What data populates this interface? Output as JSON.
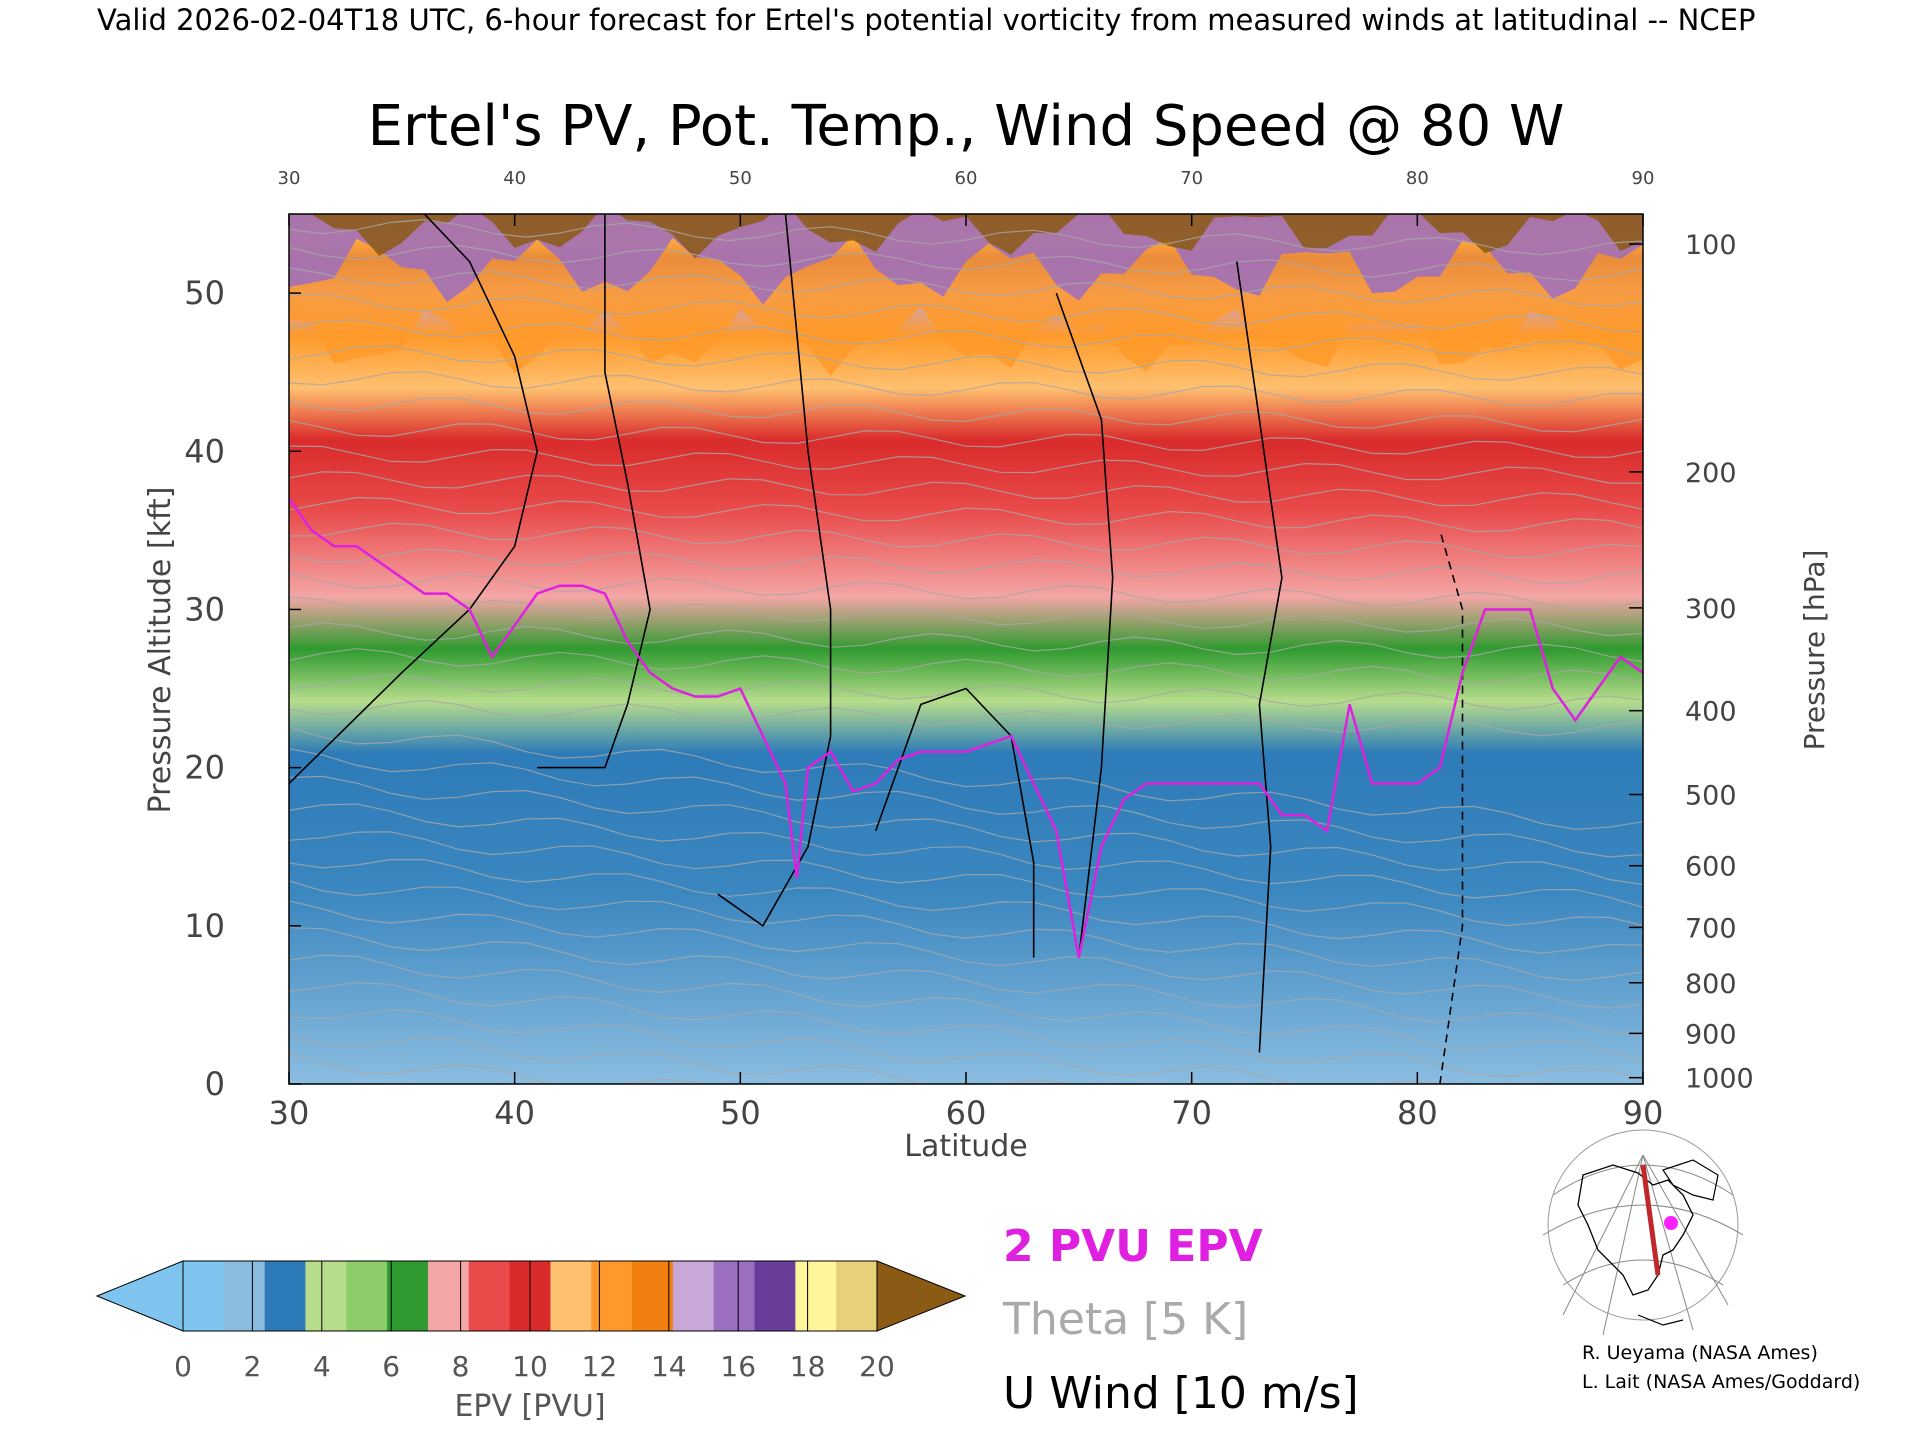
{
  "header": {
    "valid_line": "Valid 2026-02-04T18 UTC, 6-hour forecast for Ertel's potential vorticity from measured winds at latitudinal -- NCEP"
  },
  "chart_data": {
    "type": "heatmap",
    "title": "Ertel's PV, Pot. Temp., Wind Speed @ 80 W",
    "xlabel": "Latitude",
    "ylabel_left": "Pressure Altitude [kft]",
    "ylabel_right": "Pressure [hPa]",
    "xlim": [
      30,
      90
    ],
    "ylim": [
      0,
      55
    ],
    "x_ticks": [
      "30",
      "40",
      "50",
      "60",
      "70",
      "80",
      "90"
    ],
    "top_x_ticks": [
      "30",
      "40",
      "50",
      "60",
      "70",
      "80",
      "90"
    ],
    "y_ticks": [
      "0",
      "10",
      "20",
      "30",
      "40",
      "50"
    ],
    "pressure_ticks": [
      {
        "label": "100",
        "kft": 53.1
      },
      {
        "label": "200",
        "kft": 38.7
      },
      {
        "label": "300",
        "kft": 30.1
      },
      {
        "label": "400",
        "kft": 23.6
      },
      {
        "label": "500",
        "kft": 18.3
      },
      {
        "label": "600",
        "kft": 13.8
      },
      {
        "label": "700",
        "kft": 9.9
      },
      {
        "label": "800",
        "kft": 6.4
      },
      {
        "label": "900",
        "kft": 3.2
      },
      {
        "label": "1000",
        "kft": 0.4
      }
    ],
    "epv_colorbar": {
      "label": "EPV [PVU]",
      "ticks": [
        "0",
        "2",
        "4",
        "6",
        "8",
        "10",
        "12",
        "14",
        "16",
        "18",
        "20"
      ],
      "colors": [
        "#7fc4ef",
        "#8bbde0",
        "#2d7bb8",
        "#b7dd8c",
        "#8ccd6a",
        "#2f9a2f",
        "#f4a6a6",
        "#e94a4a",
        "#d92b2b",
        "#ffc070",
        "#ff9a2a",
        "#f07f10",
        "#c8a8d8",
        "#9c6ec0",
        "#6a3c9a",
        "#fff59a",
        "#e8d07a"
      ],
      "under_color": "#7fc4ef",
      "over_color": "#8b5a14"
    },
    "legend": {
      "pv_contour": "2 PVU EPV",
      "theta": "Theta [5 K]",
      "u_wind": "U Wind [10 m/s]"
    },
    "pv2_line": {
      "color": "#e020e0",
      "lat": [
        30,
        31,
        32,
        33,
        34,
        35,
        36,
        37,
        38,
        39,
        40,
        41,
        42,
        43,
        44,
        45,
        46,
        47,
        48,
        49,
        50,
        51,
        52,
        52.5,
        53,
        54,
        55,
        56,
        57,
        58,
        59,
        60,
        61,
        62,
        63,
        64,
        65,
        66,
        67,
        68,
        69,
        70,
        71,
        72,
        73,
        74,
        75,
        76,
        77,
        78,
        79,
        80,
        81,
        82,
        83,
        84,
        85,
        86,
        87,
        88,
        89,
        90
      ],
      "kft": [
        37,
        35,
        34,
        34,
        33,
        32,
        31,
        31,
        30,
        27,
        29,
        31,
        31.5,
        31.5,
        31,
        28,
        26,
        25,
        24.5,
        24.5,
        25,
        22,
        19,
        13,
        20,
        21,
        18.5,
        19,
        20.5,
        21,
        21,
        21,
        21.5,
        22,
        19,
        16,
        8,
        15,
        18,
        19,
        19,
        19,
        19,
        19,
        19,
        17,
        17,
        16,
        24,
        19,
        19,
        19,
        20,
        26,
        30,
        30,
        30,
        25,
        23,
        25,
        27,
        26
      ]
    },
    "colors": {
      "pv_contour": "#e020e0",
      "theta": "#a8a8a8",
      "u_wind": "#000000",
      "map_track": "#c0282c",
      "map_dot": "#ff20ff"
    }
  },
  "inset_map": {
    "icons": [
      "north-america-globe-icon"
    ]
  },
  "credits": {
    "line1": "R. Ueyama (NASA Ames)",
    "line2": "L. Lait (NASA Ames/Goddard)"
  }
}
